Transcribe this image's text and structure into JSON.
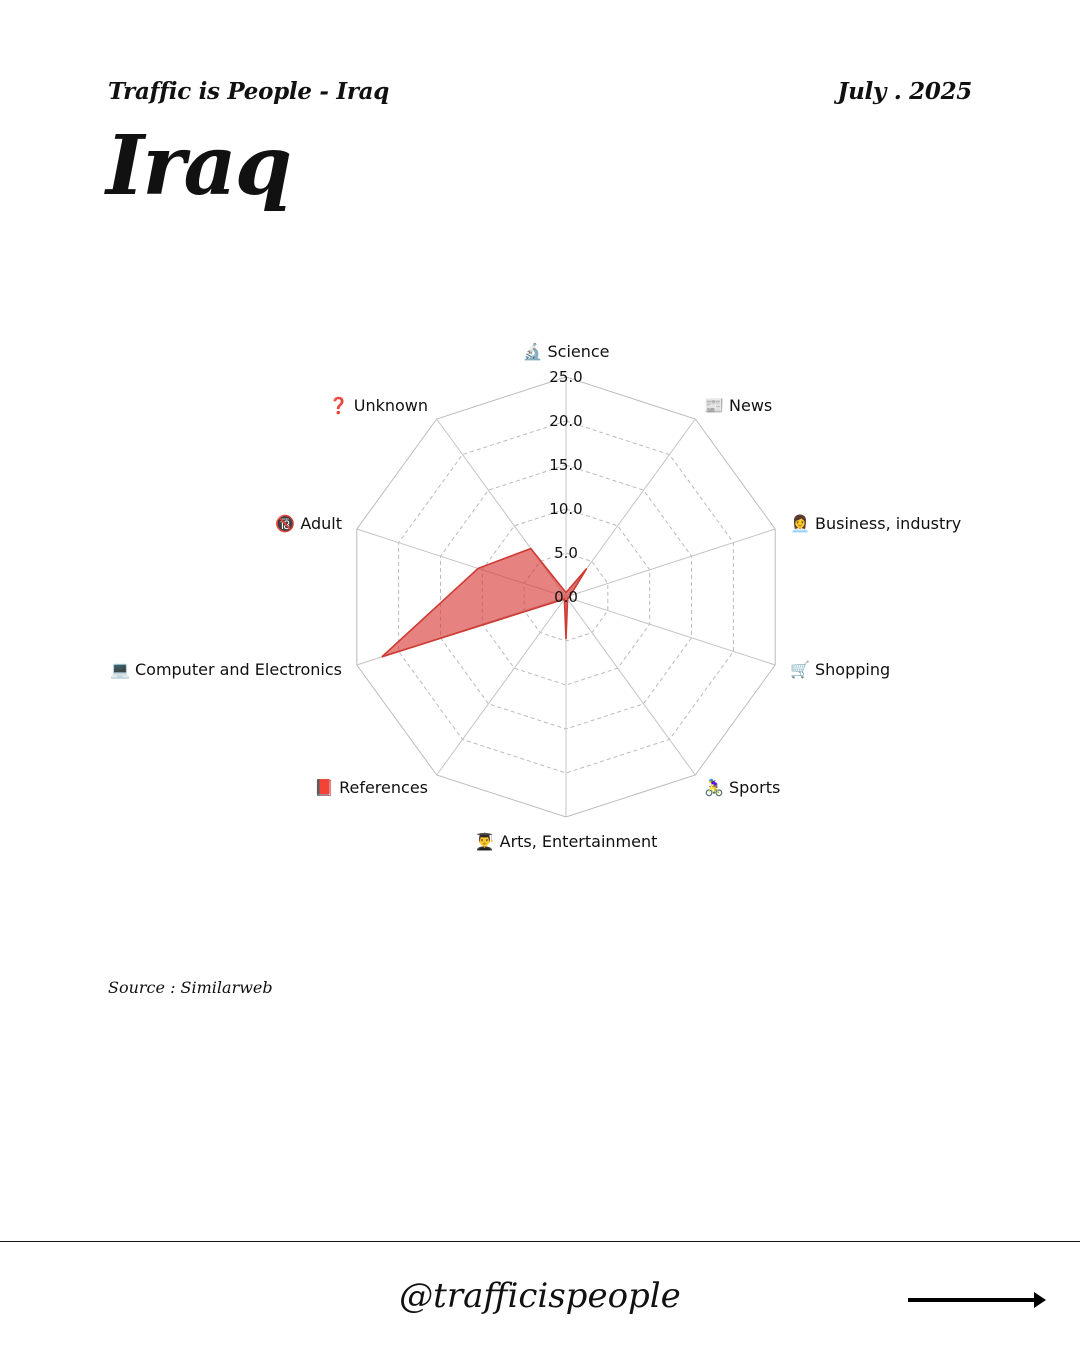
{
  "header": {
    "kicker_left": "Traffic is People - Iraq",
    "kicker_right": "July . 2025",
    "title": "Iraq"
  },
  "chart_data": {
    "type": "radar",
    "title": "",
    "r_ticks": [
      "0.0",
      "5.0",
      "10.0",
      "15.0",
      "20.0",
      "25.0"
    ],
    "r_range": [
      0,
      25
    ],
    "grid": true,
    "categories": [
      {
        "icon": "🔬",
        "label": "Science"
      },
      {
        "icon": "📰",
        "label": "News"
      },
      {
        "icon": "👩‍💼",
        "label": "Business, industry"
      },
      {
        "icon": "🛒",
        "label": "Shopping"
      },
      {
        "icon": "🚴‍♀️",
        "label": "Sports"
      },
      {
        "icon": "👨‍🎓",
        "label": "Arts, Entertainment"
      },
      {
        "icon": "📕",
        "label": "References"
      },
      {
        "icon": "💻",
        "label": "Computer and Electronics"
      },
      {
        "icon": "🔞",
        "label": "Adult"
      },
      {
        "icon": "❓",
        "label": "Unknown"
      }
    ],
    "values": [
      0.5,
      4.0,
      0.5,
      0.3,
      0.3,
      4.8,
      0.3,
      22.0,
      10.5,
      6.8
    ],
    "color": "#d6372f"
  },
  "footer": {
    "source": "Source : Similarweb",
    "handle": "@trafficispeople"
  }
}
